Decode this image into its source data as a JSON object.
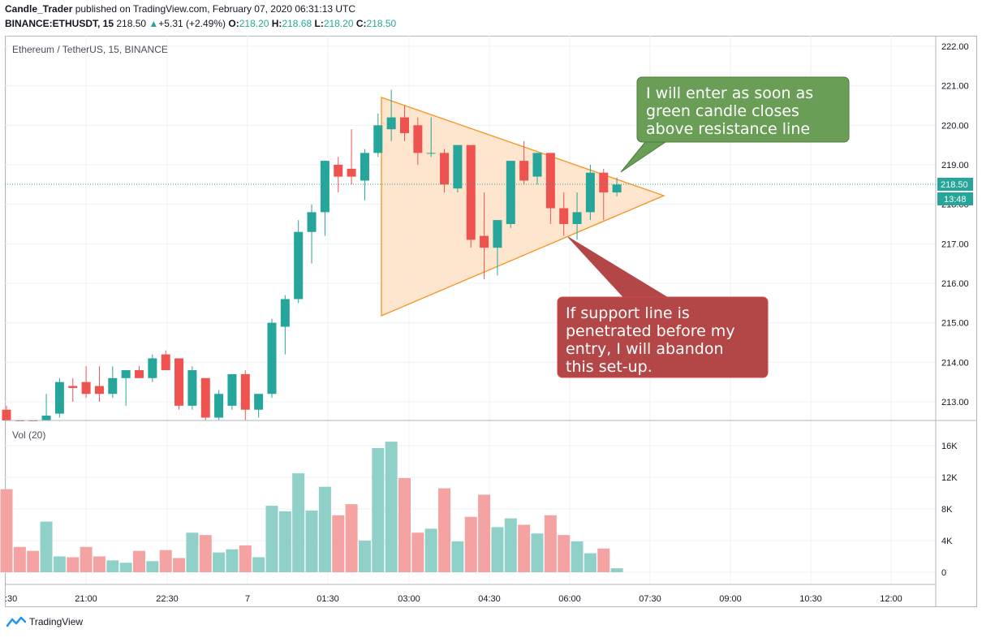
{
  "header": {
    "author": "Candle_Trader",
    "published_text": " published on TradingView.com, February 07, 2020 06:31:13 UTC",
    "symbol": "BINANCE:ETHUSDT, 15",
    "last": "218.50",
    "change": "+5.31 (+2.49%)",
    "o_label": "O:",
    "o": "218.20",
    "h_label": "H:",
    "h": "218.68",
    "l_label": "L:",
    "l": "218.20",
    "c_label": "C:",
    "c": "218.50"
  },
  "price_pane": {
    "legend": "Ethereum / TetherUS, 15, BINANCE",
    "price_badge": "218.50",
    "countdown_badge": "13:48"
  },
  "volume_pane": {
    "legend": "Vol (20)"
  },
  "annotations": {
    "green_callout": "I will enter as soon as green candle closes above resistance line",
    "red_callout": "If support line is penetrated before my entry, I will abandon this set-up."
  },
  "footer": {
    "brand": "TradingView"
  },
  "colors": {
    "up": "#26a69a",
    "down": "#ef5350",
    "triangle_fill": "#fde0c5",
    "triangle_stroke": "#f7931e",
    "green_callout": "#6a9e57",
    "red_callout": "#b34646",
    "current_price_line": "#26a69a"
  },
  "chart_data": {
    "type": "candlestick",
    "title": "Ethereum / TetherUS, 15, BINANCE",
    "price_ylim": [
      212.5,
      222.3
    ],
    "price_ticks": [
      "213.00",
      "214.00",
      "215.00",
      "216.00",
      "217.00",
      "218.00",
      "219.00",
      "220.00",
      "221.00",
      "222.00"
    ],
    "x_tick_labels": [
      ":30",
      "21:00",
      "22:30",
      "7",
      "01:30",
      "03:00",
      "04:30",
      "06:00",
      "07:30",
      "09:00",
      "10:30",
      "12:00"
    ],
    "volume_ticks": [
      "0",
      "4K",
      "8K",
      "12K",
      "16K"
    ],
    "volume_ylim": [
      0,
      17000
    ],
    "candles": [
      {
        "o": 212.8,
        "h": 212.9,
        "l": 212.4,
        "c": 212.5,
        "v": 10500
      },
      {
        "o": 212.4,
        "h": 212.5,
        "l": 212.2,
        "c": 212.3,
        "v": 3200
      },
      {
        "o": 212.3,
        "h": 212.4,
        "l": 212.1,
        "c": 212.2,
        "v": 2700
      },
      {
        "o": 212.5,
        "h": 213.2,
        "l": 212.4,
        "c": 212.65,
        "v": 6400
      },
      {
        "o": 212.7,
        "h": 213.6,
        "l": 212.6,
        "c": 213.5,
        "v": 2000
      },
      {
        "o": 213.4,
        "h": 213.6,
        "l": 213.0,
        "c": 213.35,
        "v": 1900
      },
      {
        "o": 213.5,
        "h": 213.9,
        "l": 213.1,
        "c": 213.2,
        "v": 3200
      },
      {
        "o": 213.4,
        "h": 213.9,
        "l": 213.0,
        "c": 213.2,
        "v": 2000
      },
      {
        "o": 213.2,
        "h": 213.9,
        "l": 213.1,
        "c": 213.6,
        "v": 1500
      },
      {
        "o": 213.6,
        "h": 213.8,
        "l": 212.9,
        "c": 213.8,
        "v": 1200
      },
      {
        "o": 213.8,
        "h": 213.9,
        "l": 213.6,
        "c": 213.6,
        "v": 2700
      },
      {
        "o": 213.6,
        "h": 214.2,
        "l": 213.5,
        "c": 214.1,
        "v": 1400
      },
      {
        "o": 214.2,
        "h": 214.3,
        "l": 213.8,
        "c": 213.8,
        "v": 2800
      },
      {
        "o": 214.1,
        "h": 214.1,
        "l": 212.8,
        "c": 212.9,
        "v": 1800
      },
      {
        "o": 212.9,
        "h": 213.9,
        "l": 212.8,
        "c": 213.8,
        "v": 5000
      },
      {
        "o": 213.6,
        "h": 213.6,
        "l": 212.3,
        "c": 212.6,
        "v": 4700
      },
      {
        "o": 212.6,
        "h": 213.3,
        "l": 212.5,
        "c": 213.2,
        "v": 2500
      },
      {
        "o": 212.9,
        "h": 213.7,
        "l": 212.8,
        "c": 213.7,
        "v": 2900
      },
      {
        "o": 213.7,
        "h": 213.8,
        "l": 212.5,
        "c": 212.8,
        "v": 3400
      },
      {
        "o": 212.8,
        "h": 213.2,
        "l": 212.6,
        "c": 213.2,
        "v": 1900
      },
      {
        "o": 213.2,
        "h": 215.1,
        "l": 213.1,
        "c": 215.0,
        "v": 8400
      },
      {
        "o": 214.9,
        "h": 215.7,
        "l": 214.2,
        "c": 215.6,
        "v": 7700
      },
      {
        "o": 215.6,
        "h": 217.6,
        "l": 215.5,
        "c": 217.3,
        "v": 12500
      },
      {
        "o": 217.3,
        "h": 218.0,
        "l": 216.5,
        "c": 217.8,
        "v": 7800
      },
      {
        "o": 217.8,
        "h": 219.1,
        "l": 217.2,
        "c": 219.1,
        "v": 10800
      },
      {
        "o": 219.0,
        "h": 219.2,
        "l": 218.3,
        "c": 218.7,
        "v": 7200
      },
      {
        "o": 218.9,
        "h": 219.9,
        "l": 218.5,
        "c": 218.7,
        "v": 8600
      },
      {
        "o": 218.6,
        "h": 219.4,
        "l": 218.1,
        "c": 219.3,
        "v": 4000
      },
      {
        "o": 219.3,
        "h": 220.3,
        "l": 219.2,
        "c": 220.0,
        "v": 15700
      },
      {
        "o": 219.9,
        "h": 220.9,
        "l": 219.6,
        "c": 220.2,
        "v": 16500
      },
      {
        "o": 220.2,
        "h": 220.5,
        "l": 219.6,
        "c": 219.8,
        "v": 11900
      },
      {
        "o": 220.0,
        "h": 220.2,
        "l": 219.0,
        "c": 219.3,
        "v": 5000
      },
      {
        "o": 219.3,
        "h": 220.2,
        "l": 219.2,
        "c": 219.3,
        "v": 5500
      },
      {
        "o": 219.3,
        "h": 219.4,
        "l": 218.3,
        "c": 218.5,
        "v": 10600
      },
      {
        "o": 218.4,
        "h": 219.5,
        "l": 218.3,
        "c": 219.5,
        "v": 3900
      },
      {
        "o": 219.5,
        "h": 219.5,
        "l": 216.9,
        "c": 217.1,
        "v": 7000
      },
      {
        "o": 217.2,
        "h": 218.3,
        "l": 216.1,
        "c": 216.9,
        "v": 9800
      },
      {
        "o": 216.9,
        "h": 217.6,
        "l": 216.2,
        "c": 217.6,
        "v": 5700
      },
      {
        "o": 217.5,
        "h": 219.1,
        "l": 217.4,
        "c": 219.1,
        "v": 6800
      },
      {
        "o": 219.1,
        "h": 219.6,
        "l": 218.5,
        "c": 218.6,
        "v": 6000
      },
      {
        "o": 218.7,
        "h": 219.3,
        "l": 218.5,
        "c": 219.3,
        "v": 4900
      },
      {
        "o": 219.3,
        "h": 219.3,
        "l": 217.5,
        "c": 217.9,
        "v": 7200
      },
      {
        "o": 217.9,
        "h": 218.3,
        "l": 217.2,
        "c": 217.5,
        "v": 4700
      },
      {
        "o": 217.5,
        "h": 218.3,
        "l": 217.1,
        "c": 217.8,
        "v": 3900
      },
      {
        "o": 217.8,
        "h": 219.0,
        "l": 217.6,
        "c": 218.8,
        "v": 2400
      },
      {
        "o": 218.8,
        "h": 218.9,
        "l": 217.6,
        "c": 218.3,
        "v": 3000
      },
      {
        "o": 218.3,
        "h": 218.68,
        "l": 218.2,
        "c": 218.5,
        "v": 500
      }
    ]
  }
}
